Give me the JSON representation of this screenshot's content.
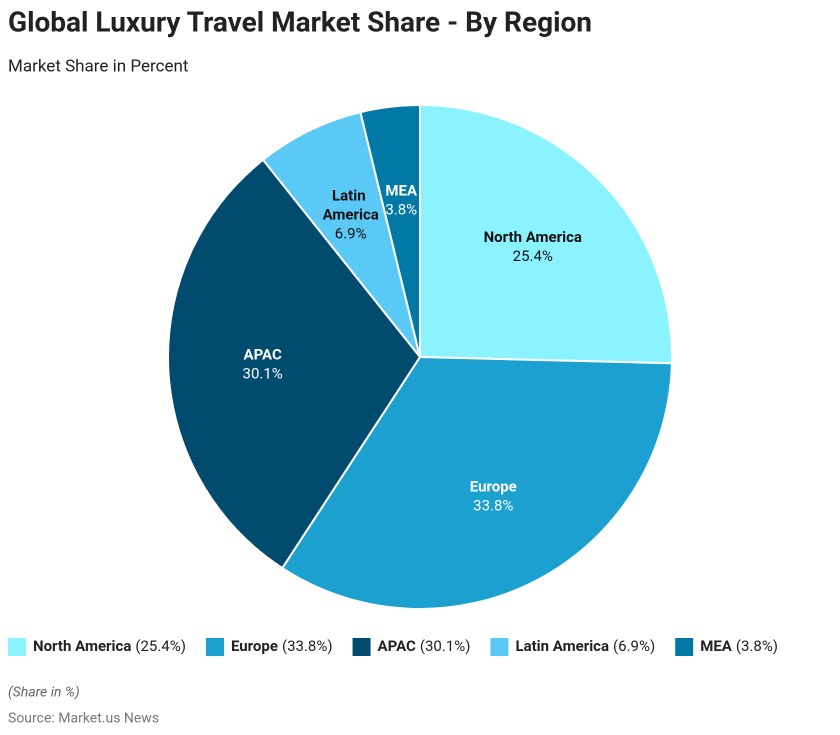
{
  "chart_data": {
    "type": "pie",
    "title": "Global Luxury Travel Market Share - By Region",
    "subtitle": "Market Share in Percent",
    "categories": [
      "North America",
      "Europe",
      "APAC",
      "Latin America",
      "MEA"
    ],
    "values": [
      25.4,
      33.8,
      30.1,
      6.9,
      3.8
    ],
    "value_labels": [
      "25.4%",
      "33.8%",
      "30.1%",
      "6.9%",
      "3.8%"
    ],
    "legend_value_labels": [
      "(25.4%)",
      "(33.8%)",
      "(30.1%)",
      "(6.9%)",
      "(3.8%)"
    ],
    "colors": [
      "#8af3ff",
      "#1ba0d0",
      "#014b6f",
      "#5bc9f6",
      "#0179a6"
    ],
    "note": "(Share in %)",
    "source": "Source: Market.us News"
  }
}
